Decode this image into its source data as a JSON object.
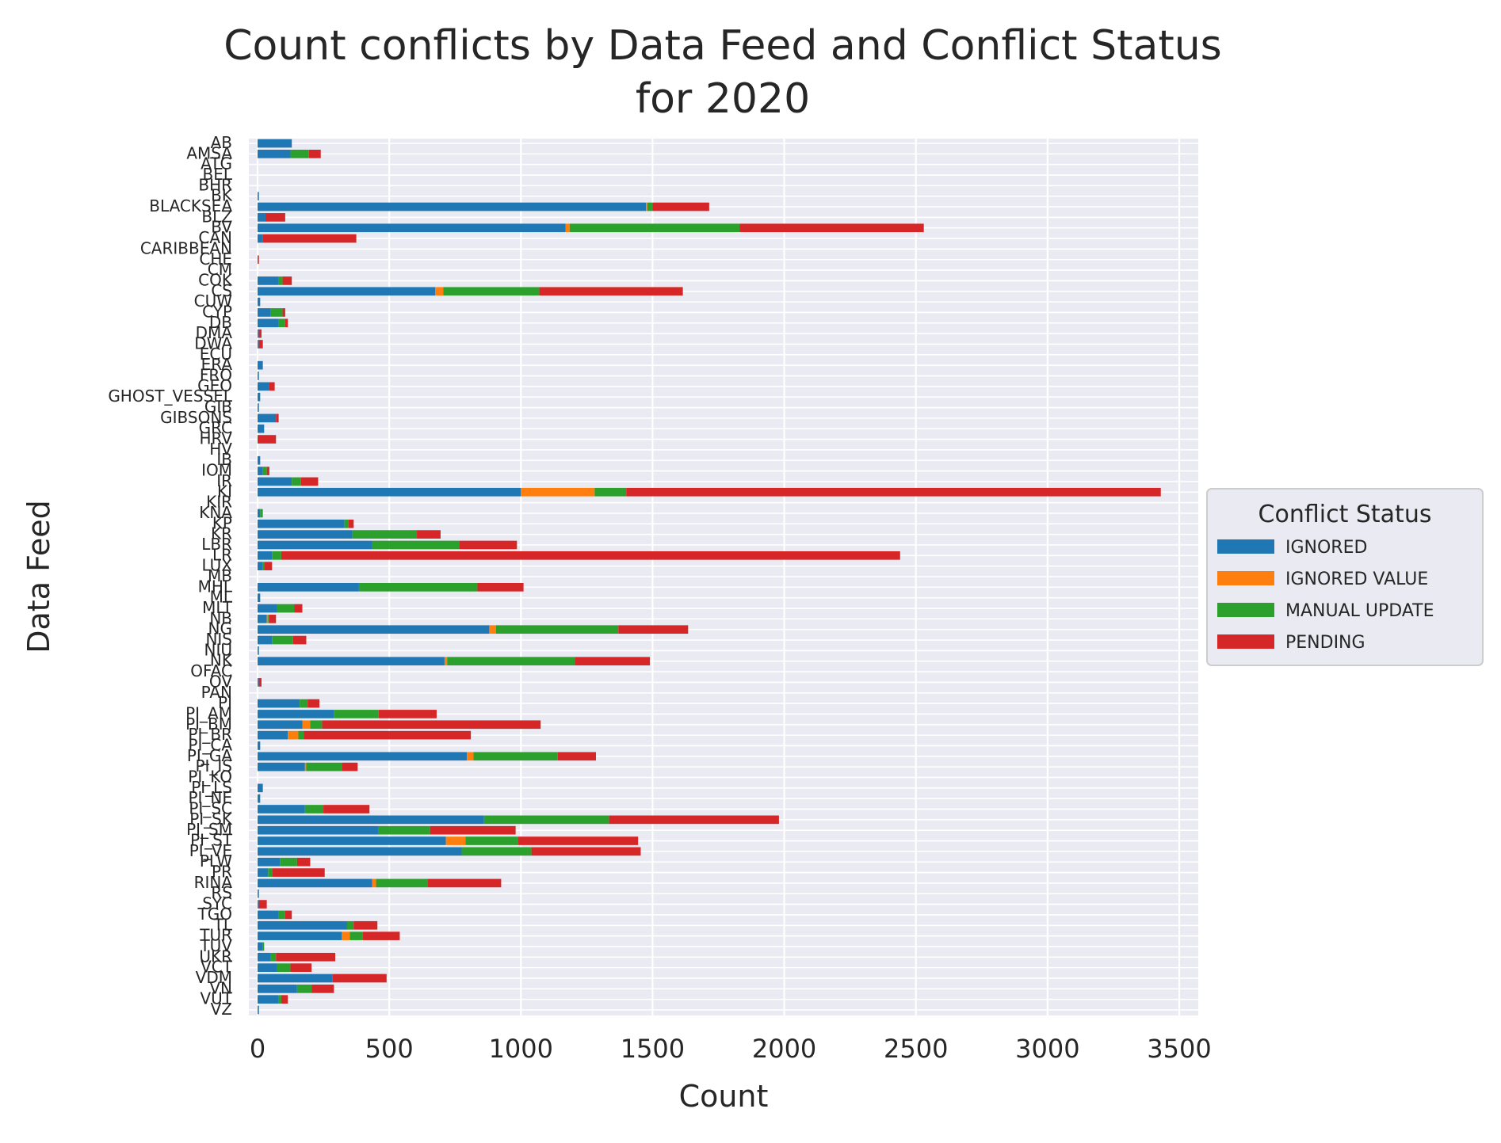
{
  "chart_data": {
    "type": "bar",
    "orientation": "horizontal",
    "stacked": true,
    "title": "Count conflicts by Data Feed and Conflict Status\nfor 2020",
    "xlabel": "Count",
    "ylabel": "Data Feed",
    "xlim": [
      0,
      3600
    ],
    "x_ticks": [
      0,
      500,
      1000,
      1500,
      2000,
      2500,
      3000,
      3500
    ],
    "grid": true,
    "legend": {
      "title": "Conflict Status",
      "position": "right"
    },
    "colors": {
      "IGNORED": "#1f77b4",
      "IGNORED VALUE": "#ff7f0e",
      "MANUAL UPDATE": "#2ca02c",
      "PENDING": "#d62728",
      "background": "#eaeaf2"
    },
    "categories": [
      "AB",
      "AMSA",
      "ATG",
      "BEL",
      "BHR",
      "BK",
      "BLACKSEA",
      "BLZ",
      "BV",
      "CAN",
      "CARIBBEAN",
      "CHE",
      "CM",
      "COK",
      "CS",
      "CUW",
      "CYP",
      "DB",
      "DMA",
      "DWA",
      "ECU",
      "ERA",
      "FRO",
      "GEO",
      "GHOST_VESSEL",
      "GIB",
      "GIBSONS",
      "GRC",
      "HRV",
      "HV",
      "IB",
      "IOM",
      "IR",
      "KI",
      "KIR",
      "KNA",
      "KP",
      "KR",
      "LBR",
      "LR",
      "LUX",
      "MB",
      "MHL",
      "ML",
      "MLT",
      "NB",
      "NG",
      "NIS",
      "NIU",
      "NK",
      "OFAC",
      "OV",
      "PAN",
      "PI",
      "PI_AM",
      "PI_BM",
      "PI_BR",
      "PI_CA",
      "PI_GA",
      "PI_IS",
      "PI_KO",
      "PI_LS",
      "PI_NE",
      "PI_SC",
      "PI_SK",
      "PI_SM",
      "PI_ST",
      "PI_VE",
      "PLW",
      "PR",
      "RINA",
      "RS",
      "SYC",
      "TGO",
      "TL",
      "TUR",
      "TUV",
      "UKR",
      "VCT",
      "VDM",
      "VN",
      "VUT",
      "VZ"
    ],
    "series": [
      {
        "name": "IGNORED",
        "values": [
          130,
          125,
          0,
          0,
          0,
          5,
          1475,
          30,
          1170,
          20,
          0,
          0,
          0,
          80,
          675,
          10,
          50,
          80,
          5,
          5,
          0,
          20,
          5,
          45,
          10,
          5,
          70,
          25,
          0,
          0,
          10,
          20,
          130,
          1000,
          0,
          10,
          330,
          360,
          435,
          55,
          20,
          0,
          385,
          10,
          75,
          35,
          880,
          55,
          5,
          710,
          0,
          5,
          0,
          160,
          290,
          170,
          115,
          10,
          795,
          180,
          0,
          20,
          10,
          180,
          860,
          460,
          715,
          775,
          85,
          40,
          435,
          5,
          5,
          80,
          340,
          320,
          20,
          50,
          75,
          285,
          150,
          80,
          5
        ]
      },
      {
        "name": "IGNORED VALUE",
        "values": [
          0,
          0,
          0,
          0,
          0,
          0,
          5,
          0,
          15,
          0,
          0,
          0,
          0,
          0,
          30,
          0,
          0,
          0,
          0,
          0,
          0,
          0,
          0,
          0,
          0,
          0,
          0,
          0,
          0,
          0,
          0,
          0,
          0,
          280,
          0,
          0,
          0,
          0,
          0,
          0,
          0,
          0,
          0,
          0,
          0,
          5,
          25,
          0,
          0,
          10,
          0,
          0,
          0,
          0,
          0,
          30,
          40,
          0,
          25,
          5,
          0,
          0,
          0,
          0,
          0,
          0,
          75,
          0,
          0,
          0,
          15,
          0,
          0,
          0,
          0,
          30,
          0,
          0,
          0,
          0,
          0,
          0,
          0
        ]
      },
      {
        "name": "MANUAL UPDATE",
        "values": [
          0,
          70,
          0,
          0,
          0,
          0,
          20,
          0,
          645,
          0,
          0,
          0,
          0,
          15,
          365,
          0,
          45,
          25,
          0,
          0,
          0,
          0,
          0,
          0,
          0,
          0,
          0,
          0,
          0,
          0,
          0,
          15,
          35,
          120,
          0,
          10,
          15,
          245,
          330,
          35,
          5,
          0,
          450,
          0,
          65,
          5,
          465,
          80,
          0,
          485,
          0,
          0,
          0,
          30,
          170,
          45,
          20,
          0,
          320,
          135,
          0,
          0,
          0,
          70,
          475,
          195,
          200,
          265,
          65,
          15,
          195,
          0,
          0,
          25,
          25,
          50,
          5,
          20,
          50,
          0,
          55,
          10,
          0
        ]
      },
      {
        "name": "PENDING",
        "values": [
          0,
          45,
          0,
          0,
          0,
          0,
          215,
          75,
          700,
          355,
          0,
          5,
          0,
          35,
          545,
          0,
          10,
          10,
          10,
          15,
          0,
          0,
          0,
          20,
          0,
          0,
          10,
          0,
          70,
          0,
          0,
          10,
          65,
          2030,
          0,
          0,
          20,
          90,
          220,
          2350,
          30,
          0,
          175,
          0,
          30,
          25,
          265,
          50,
          0,
          285,
          0,
          10,
          0,
          45,
          220,
          830,
          635,
          0,
          145,
          60,
          0,
          0,
          0,
          175,
          645,
          325,
          455,
          415,
          50,
          200,
          280,
          0,
          30,
          25,
          90,
          140,
          0,
          225,
          80,
          205,
          85,
          25,
          0
        ]
      }
    ]
  }
}
